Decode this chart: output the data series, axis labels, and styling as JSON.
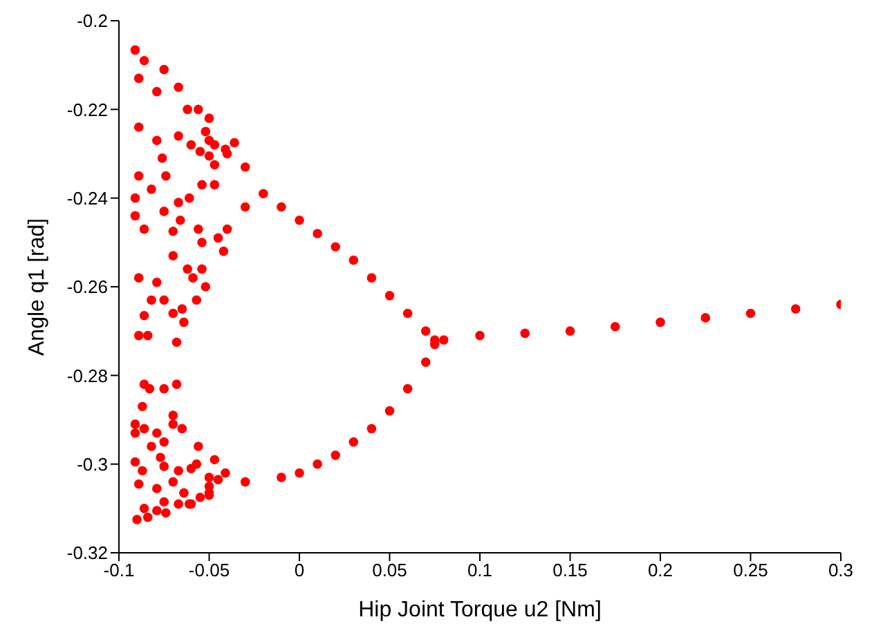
{
  "chart_data": {
    "type": "scatter",
    "xlabel": "Hip Joint Torque u2 [Nm]",
    "ylabel": "Angle q1 [rad]",
    "xlim": [
      -0.1,
      0.3
    ],
    "ylim": [
      -0.32,
      -0.2
    ],
    "xticks": [
      -0.1,
      -0.05,
      0,
      0.05,
      0.1,
      0.15,
      0.2,
      0.25,
      0.3
    ],
    "yticks": [
      -0.32,
      -0.3,
      -0.28,
      -0.26,
      -0.24,
      -0.22,
      -0.2
    ],
    "grid": false,
    "marker": "circle",
    "series": [
      {
        "color": "#ff0000",
        "x": [
          -0.02,
          -0.01,
          0,
          0.01,
          0.02,
          0.03,
          0.04,
          0.05,
          0.06,
          0.07,
          0.075,
          -0.05,
          -0.03,
          -0.01,
          0,
          0.01,
          0.02,
          0.03,
          0.04,
          0.05,
          0.06,
          0.07,
          0.075,
          0.08,
          0.1,
          0.125,
          0.15,
          0.175,
          0.2,
          0.225,
          0.25,
          0.275,
          0.3,
          -0.03,
          -0.04,
          -0.05,
          -0.03,
          -0.04,
          -0.045,
          -0.05,
          -0.06,
          -0.05,
          -0.06,
          -0.091,
          -0.086,
          -0.089,
          -0.075,
          -0.079,
          -0.067,
          -0.062,
          -0.089,
          -0.079,
          -0.067,
          -0.076,
          -0.06,
          -0.089,
          -0.082,
          -0.074,
          -0.091,
          -0.075,
          -0.067,
          -0.061,
          -0.054,
          -0.047,
          -0.091,
          -0.086,
          -0.066,
          -0.07,
          -0.056,
          -0.054,
          -0.07,
          -0.042,
          -0.062,
          -0.054,
          -0.089,
          -0.079,
          -0.059,
          -0.082,
          -0.075,
          -0.052,
          -0.057,
          -0.086,
          -0.07,
          -0.065,
          -0.064,
          -0.089,
          -0.084,
          -0.068,
          -0.086,
          -0.083,
          -0.075,
          -0.068,
          -0.087,
          -0.07,
          -0.091,
          -0.086,
          -0.091,
          -0.079,
          -0.07,
          -0.065,
          -0.082,
          -0.075,
          -0.056,
          -0.091,
          -0.077,
          -0.047,
          -0.087,
          -0.075,
          -0.067,
          -0.057,
          -0.089,
          -0.079,
          -0.07,
          -0.064,
          -0.055,
          -0.075,
          -0.067,
          -0.086,
          -0.079,
          -0.09,
          -0.084,
          -0.074,
          -0.061,
          -0.05,
          -0.041,
          -0.045,
          -0.056,
          -0.05,
          -0.052,
          -0.047,
          -0.041,
          -0.036,
          -0.05,
          -0.047,
          -0.055
        ],
        "values": [
          -0.239,
          -0.242,
          -0.245,
          -0.248,
          -0.251,
          -0.254,
          -0.258,
          -0.262,
          -0.266,
          -0.27,
          -0.272,
          -0.305,
          -0.304,
          -0.303,
          -0.302,
          -0.3,
          -0.298,
          -0.295,
          -0.292,
          -0.288,
          -0.283,
          -0.277,
          -0.273,
          -0.272,
          -0.271,
          -0.2705,
          -0.27,
          -0.269,
          -0.268,
          -0.267,
          -0.266,
          -0.265,
          -0.264,
          -0.233,
          -0.23,
          -0.227,
          -0.242,
          -0.247,
          -0.249,
          -0.303,
          -0.301,
          -0.307,
          -0.309,
          -0.2066,
          -0.209,
          -0.213,
          -0.211,
          -0.216,
          -0.215,
          -0.22,
          -0.224,
          -0.227,
          -0.226,
          -0.231,
          -0.228,
          -0.235,
          -0.238,
          -0.235,
          -0.24,
          -0.243,
          -0.241,
          -0.24,
          -0.237,
          -0.237,
          -0.244,
          -0.247,
          -0.245,
          -0.2475,
          -0.247,
          -0.25,
          -0.253,
          -0.252,
          -0.256,
          -0.256,
          -0.258,
          -0.259,
          -0.258,
          -0.263,
          -0.263,
          -0.26,
          -0.263,
          -0.2665,
          -0.266,
          -0.265,
          -0.268,
          -0.271,
          -0.271,
          -0.2725,
          -0.282,
          -0.283,
          -0.283,
          -0.282,
          -0.287,
          -0.289,
          -0.291,
          -0.292,
          -0.293,
          -0.293,
          -0.291,
          -0.292,
          -0.296,
          -0.295,
          -0.296,
          -0.2995,
          -0.2985,
          -0.299,
          -0.3015,
          -0.3005,
          -0.3015,
          -0.3,
          -0.3045,
          -0.3055,
          -0.304,
          -0.3065,
          -0.3075,
          -0.3085,
          -0.309,
          -0.31,
          -0.3105,
          -0.3125,
          -0.312,
          -0.311,
          -0.309,
          -0.3065,
          -0.302,
          -0.3035,
          -0.22,
          -0.222,
          -0.225,
          -0.228,
          -0.229,
          -0.2275,
          -0.2305,
          -0.2325,
          -0.2295
        ]
      }
    ]
  }
}
